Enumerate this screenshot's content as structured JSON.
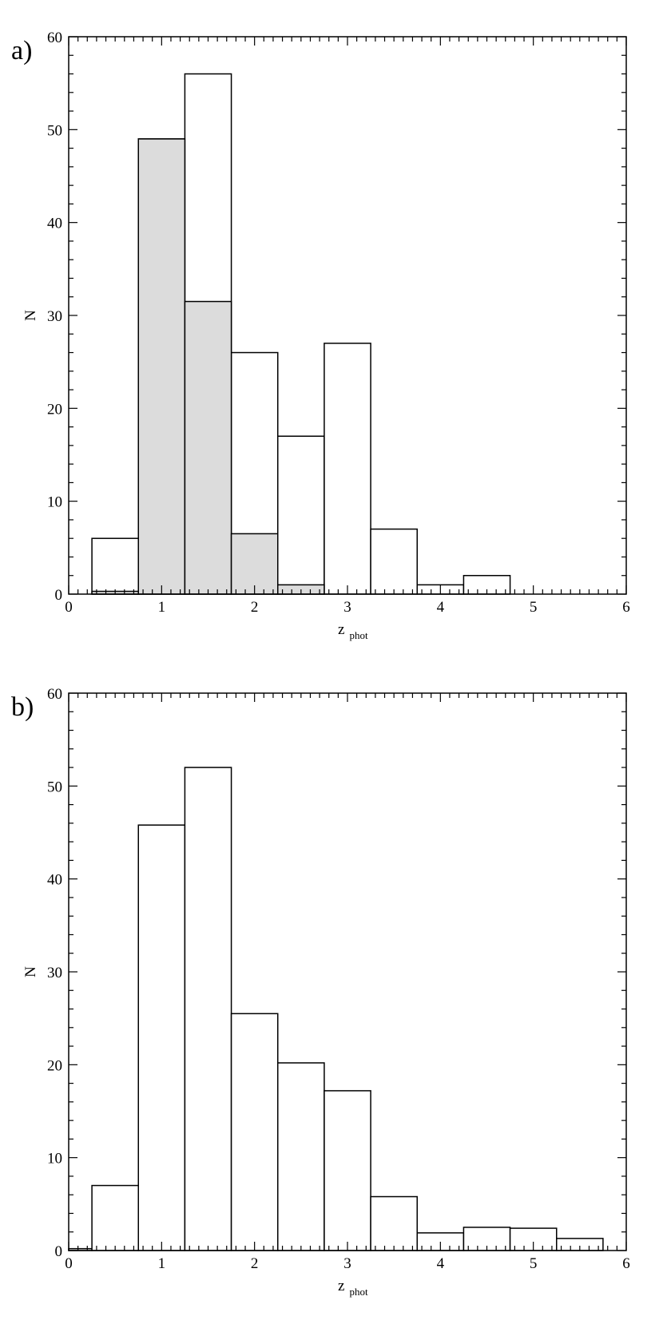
{
  "chart_data": [
    {
      "type": "bar",
      "panel_label": "a)",
      "xlabel_main": "z",
      "xlabel_sub": "phot",
      "ylabel": "N",
      "xlim": [
        0,
        6
      ],
      "ylim": [
        0,
        60
      ],
      "xticks": [
        "0",
        "1",
        "2",
        "3",
        "4",
        "5",
        "6"
      ],
      "yticks": [
        "0",
        "10",
        "20",
        "30",
        "40",
        "50",
        "60"
      ],
      "bin_edges": [
        0.25,
        0.75,
        1.25,
        1.75,
        2.25,
        2.75,
        3.25,
        3.75,
        4.25,
        4.75,
        5.25,
        5.75
      ],
      "series": [
        {
          "role": "outline",
          "values": [
            6,
            49,
            56,
            26,
            17,
            27,
            7,
            1,
            2,
            0,
            0
          ],
          "fill": "#ffffff"
        },
        {
          "role": "shaded",
          "values": [
            0.3,
            49,
            31.5,
            6.5,
            1,
            0,
            0,
            0,
            0,
            0,
            0
          ],
          "fill": "#dcdcdc"
        }
      ]
    },
    {
      "type": "bar",
      "panel_label": "b)",
      "xlabel_main": "z",
      "xlabel_sub": "phot",
      "ylabel": "N",
      "xlim": [
        0,
        6
      ],
      "ylim": [
        0,
        60
      ],
      "xticks": [
        "0",
        "1",
        "2",
        "3",
        "4",
        "5",
        "6"
      ],
      "yticks": [
        "0",
        "10",
        "20",
        "30",
        "40",
        "50",
        "60"
      ],
      "bin_edges": [
        -0.25,
        0.25,
        0.75,
        1.25,
        1.75,
        2.25,
        2.75,
        3.25,
        3.75,
        4.25,
        4.75,
        5.25,
        5.75
      ],
      "series": [
        {
          "role": "outline",
          "values": [
            0.2,
            7,
            45.8,
            52,
            25.5,
            20.2,
            17.2,
            5.8,
            1.9,
            2.5,
            2.4,
            1.3
          ],
          "fill": "#ffffff"
        }
      ]
    }
  ]
}
